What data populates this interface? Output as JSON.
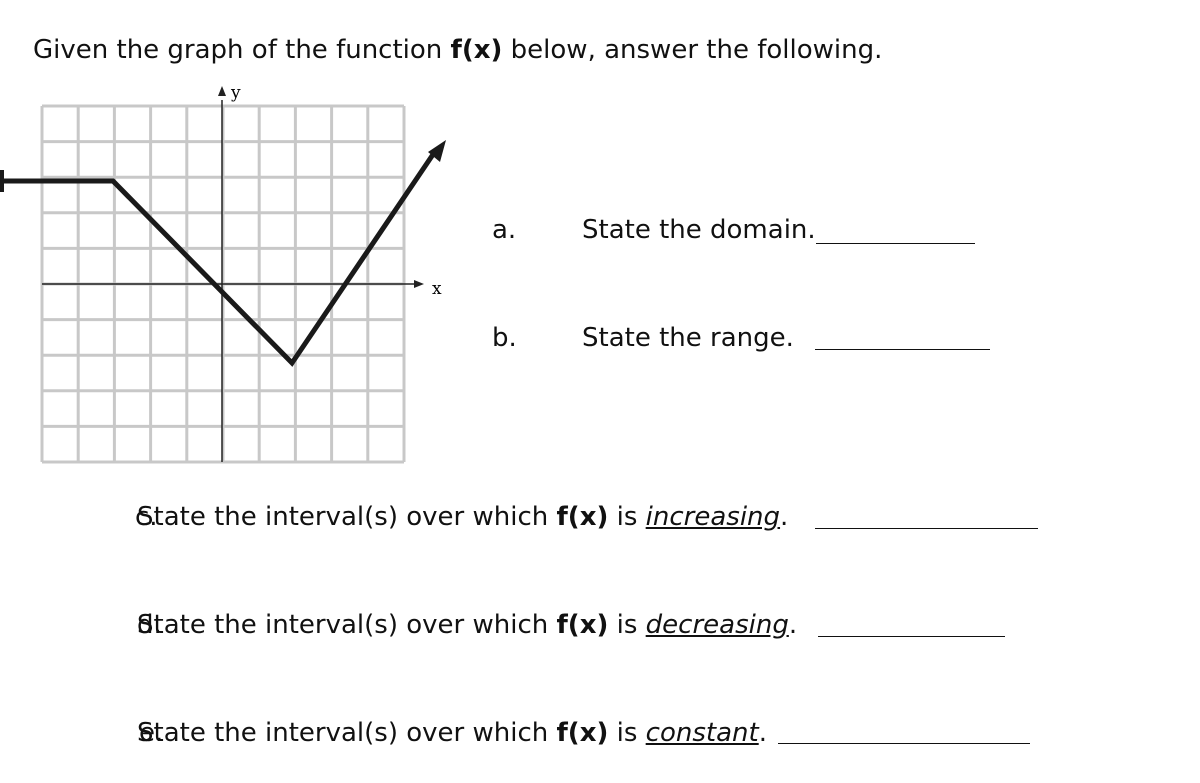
{
  "header": {
    "before": "Given the graph of the function ",
    "function": "f(x)",
    "after": " below, answer the following."
  },
  "graph": {
    "y_label": "y",
    "x_label": "x"
  },
  "questions": [
    {
      "label": "a.",
      "text": "State the domain."
    },
    {
      "label": "b.",
      "text": "State the range."
    },
    {
      "label": "c.",
      "before": "State the interval(s) over which ",
      "function": "f(x)",
      "middle": " is ",
      "emphasis": "increasing",
      "after": "."
    },
    {
      "label": "d.",
      "before": "State the interval(s) over which ",
      "function": "f(x)",
      "middle": " is ",
      "emphasis": "decreasing",
      "after": "."
    },
    {
      "label": "e.",
      "before": "State the interval(s) over which ",
      "function": "f(x)",
      "middle": " is ",
      "emphasis": "constant",
      "after": "."
    }
  ]
}
